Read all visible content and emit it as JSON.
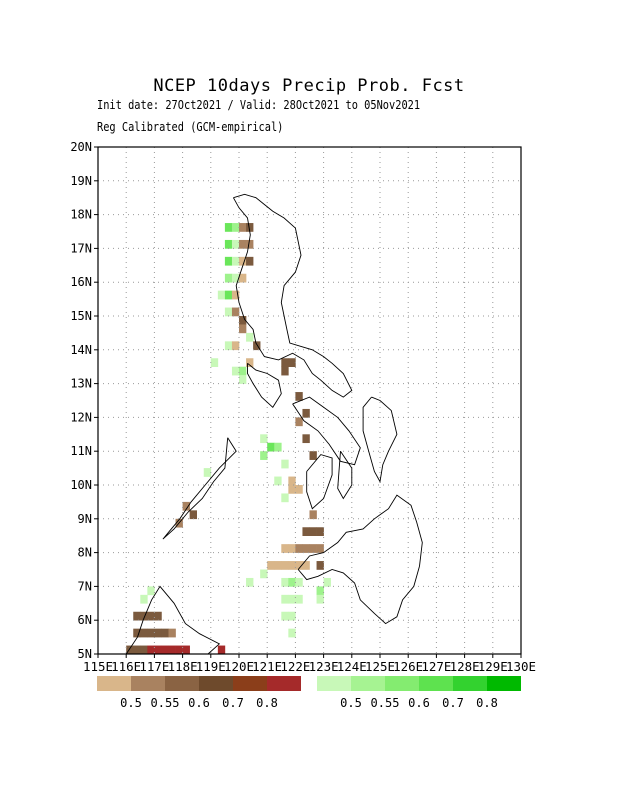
{
  "title": "NCEP 10days Precip Prob. Fcst",
  "subtitle_dates": "Init date: 27Oct2021 / Valid: 28Oct2021 to 05Nov2021",
  "subtitle_method": "Reg Calibrated (GCM-empirical)",
  "y_ticks": [
    "5N",
    "6N",
    "7N",
    "8N",
    "9N",
    "10N",
    "11N",
    "12N",
    "13N",
    "14N",
    "15N",
    "16N",
    "17N",
    "18N",
    "19N",
    "20N"
  ],
  "x_ticks": [
    "115E",
    "116E",
    "117E",
    "118E",
    "119E",
    "120E",
    "121E",
    "122E",
    "123E",
    "124E",
    "125E",
    "126E",
    "127E",
    "128E",
    "129E",
    "130E"
  ],
  "legend_dry": {
    "labels": [
      "0.5",
      "0.55",
      "0.6",
      "0.7",
      "0.8"
    ],
    "colors": [
      "#d9b68a",
      "#a98260",
      "#8a6343",
      "#6e4a2c",
      "#8b3e1a",
      "#a52a2a"
    ]
  },
  "legend_wet": {
    "labels": [
      "0.5",
      "0.55",
      "0.6",
      "0.7",
      "0.8"
    ],
    "colors": [
      "#c8f8b8",
      "#a6f392",
      "#84ec70",
      "#5ee24f",
      "#33d22f",
      "#00b900"
    ]
  },
  "colors": {
    "dry_low": "#d9b68a",
    "dry_mid": "#a98260",
    "dry_high": "#7b5a3e",
    "wet_low": "#c8f8b8",
    "wet_mid": "#9ef28c",
    "wet_high": "#6ae65a",
    "red": "#a52a2a",
    "coast": "#000000",
    "grid": "#999999"
  },
  "cells": [
    {
      "lon": 119.5,
      "lat": 17.5,
      "p": "wet_high"
    },
    {
      "lon": 119.75,
      "lat": 17.5,
      "p": "wet_mid"
    },
    {
      "lon": 120.0,
      "lat": 17.5,
      "p": "dry_mid"
    },
    {
      "lon": 120.25,
      "lat": 17.5,
      "p": "dry_high"
    },
    {
      "lon": 119.5,
      "lat": 17.0,
      "p": "wet_high"
    },
    {
      "lon": 119.75,
      "lat": 17.0,
      "p": "wet_low"
    },
    {
      "lon": 120.0,
      "lat": 17.0,
      "p": "dry_mid"
    },
    {
      "lon": 120.25,
      "lat": 17.0,
      "p": "dry_mid"
    },
    {
      "lon": 119.5,
      "lat": 16.5,
      "p": "wet_high"
    },
    {
      "lon": 119.75,
      "lat": 16.5,
      "p": "wet_low"
    },
    {
      "lon": 120.0,
      "lat": 16.5,
      "p": "dry_low"
    },
    {
      "lon": 120.25,
      "lat": 16.5,
      "p": "dry_high"
    },
    {
      "lon": 119.5,
      "lat": 16.0,
      "p": "wet_mid"
    },
    {
      "lon": 119.75,
      "lat": 16.0,
      "p": "wet_low"
    },
    {
      "lon": 120.0,
      "lat": 16.0,
      "p": "dry_low"
    },
    {
      "lon": 119.25,
      "lat": 15.5,
      "p": "wet_low"
    },
    {
      "lon": 119.5,
      "lat": 15.5,
      "p": "wet_high"
    },
    {
      "lon": 119.75,
      "lat": 15.5,
      "p": "dry_low"
    },
    {
      "lon": 119.5,
      "lat": 15.0,
      "p": "wet_low"
    },
    {
      "lon": 119.75,
      "lat": 15.0,
      "p": "dry_mid"
    },
    {
      "lon": 120.0,
      "lat": 14.75,
      "p": "dry_high"
    },
    {
      "lon": 120.0,
      "lat": 14.5,
      "p": "dry_mid"
    },
    {
      "lon": 120.25,
      "lat": 14.25,
      "p": "wet_low"
    },
    {
      "lon": 119.5,
      "lat": 14.0,
      "p": "wet_low"
    },
    {
      "lon": 119.75,
      "lat": 14.0,
      "p": "dry_low"
    },
    {
      "lon": 120.5,
      "lat": 14.0,
      "p": "dry_high"
    },
    {
      "lon": 119.0,
      "lat": 13.5,
      "p": "wet_low"
    },
    {
      "lon": 119.75,
      "lat": 13.25,
      "p": "wet_low"
    },
    {
      "lon": 120.0,
      "lat": 13.25,
      "p": "wet_mid"
    },
    {
      "lon": 120.0,
      "lat": 13.0,
      "p": "wet_low"
    },
    {
      "lon": 120.25,
      "lat": 13.5,
      "p": "dry_low"
    },
    {
      "lon": 121.5,
      "lat": 13.5,
      "p": "dry_high"
    },
    {
      "lon": 121.75,
      "lat": 13.5,
      "p": "dry_high"
    },
    {
      "lon": 121.5,
      "lat": 13.25,
      "p": "dry_high"
    },
    {
      "lon": 122.0,
      "lat": 12.5,
      "p": "dry_high"
    },
    {
      "lon": 122.25,
      "lat": 12.0,
      "p": "dry_high"
    },
    {
      "lon": 122.0,
      "lat": 11.75,
      "p": "dry_mid"
    },
    {
      "lon": 122.25,
      "lat": 11.25,
      "p": "dry_high"
    },
    {
      "lon": 122.5,
      "lat": 10.75,
      "p": "dry_high"
    },
    {
      "lon": 120.75,
      "lat": 11.25,
      "p": "wet_low"
    },
    {
      "lon": 121.0,
      "lat": 11.0,
      "p": "wet_high"
    },
    {
      "lon": 121.25,
      "lat": 11.0,
      "p": "wet_mid"
    },
    {
      "lon": 120.75,
      "lat": 10.75,
      "p": "wet_mid"
    },
    {
      "lon": 121.5,
      "lat": 10.5,
      "p": "wet_low"
    },
    {
      "lon": 121.25,
      "lat": 10.0,
      "p": "wet_low"
    },
    {
      "lon": 121.5,
      "lat": 9.5,
      "p": "wet_low"
    },
    {
      "lon": 121.75,
      "lat": 9.75,
      "p": "dry_low"
    },
    {
      "lon": 121.75,
      "lat": 10.0,
      "p": "dry_low"
    },
    {
      "lon": 122.0,
      "lat": 9.75,
      "p": "dry_low"
    },
    {
      "lon": 118.75,
      "lat": 10.25,
      "p": "wet_low"
    },
    {
      "lon": 118.0,
      "lat": 9.25,
      "p": "dry_mid"
    },
    {
      "lon": 117.75,
      "lat": 8.75,
      "p": "dry_mid"
    },
    {
      "lon": 118.25,
      "lat": 9.0,
      "p": "dry_high"
    },
    {
      "lon": 122.5,
      "lat": 9.0,
      "p": "dry_mid"
    },
    {
      "lon": 122.25,
      "lat": 8.5,
      "p": "dry_high"
    },
    {
      "lon": 122.5,
      "lat": 8.5,
      "p": "dry_high"
    },
    {
      "lon": 122.75,
      "lat": 8.5,
      "p": "dry_high"
    },
    {
      "lon": 121.5,
      "lat": 8.0,
      "p": "dry_low"
    },
    {
      "lon": 121.75,
      "lat": 8.0,
      "p": "dry_low"
    },
    {
      "lon": 122.0,
      "lat": 8.0,
      "p": "dry_mid"
    },
    {
      "lon": 122.25,
      "lat": 8.0,
      "p": "dry_mid"
    },
    {
      "lon": 122.5,
      "lat": 8.0,
      "p": "dry_mid"
    },
    {
      "lon": 122.75,
      "lat": 8.0,
      "p": "dry_mid"
    },
    {
      "lon": 121.0,
      "lat": 7.5,
      "p": "dry_low"
    },
    {
      "lon": 121.25,
      "lat": 7.5,
      "p": "dry_low"
    },
    {
      "lon": 121.5,
      "lat": 7.5,
      "p": "dry_low"
    },
    {
      "lon": 121.75,
      "lat": 7.5,
      "p": "dry_low"
    },
    {
      "lon": 122.0,
      "lat": 7.5,
      "p": "dry_low"
    },
    {
      "lon": 122.25,
      "lat": 7.5,
      "p": "dry_low"
    },
    {
      "lon": 122.75,
      "lat": 7.5,
      "p": "dry_high"
    },
    {
      "lon": 120.75,
      "lat": 7.25,
      "p": "wet_low"
    },
    {
      "lon": 121.5,
      "lat": 7.0,
      "p": "wet_low"
    },
    {
      "lon": 121.75,
      "lat": 7.0,
      "p": "wet_mid"
    },
    {
      "lon": 122.0,
      "lat": 7.0,
      "p": "wet_low"
    },
    {
      "lon": 121.5,
      "lat": 6.5,
      "p": "wet_low"
    },
    {
      "lon": 121.75,
      "lat": 6.5,
      "p": "wet_low"
    },
    {
      "lon": 122.0,
      "lat": 6.5,
      "p": "wet_low"
    },
    {
      "lon": 121.5,
      "lat": 6.0,
      "p": "wet_low"
    },
    {
      "lon": 121.75,
      "lat": 6.0,
      "p": "wet_low"
    },
    {
      "lon": 121.75,
      "lat": 5.5,
      "p": "wet_low"
    },
    {
      "lon": 122.75,
      "lat": 6.75,
      "p": "wet_mid"
    },
    {
      "lon": 122.75,
      "lat": 6.5,
      "p": "wet_low"
    },
    {
      "lon": 123.0,
      "lat": 7.0,
      "p": "wet_low"
    },
    {
      "lon": 120.25,
      "lat": 7.0,
      "p": "wet_low"
    },
    {
      "lon": 116.5,
      "lat": 6.5,
      "p": "wet_low"
    },
    {
      "lon": 116.75,
      "lat": 6.75,
      "p": "wet_low"
    },
    {
      "lon": 116.25,
      "lat": 6.0,
      "p": "dry_high"
    },
    {
      "lon": 116.5,
      "lat": 6.0,
      "p": "dry_high"
    },
    {
      "lon": 116.75,
      "lat": 6.0,
      "p": "dry_high"
    },
    {
      "lon": 117.0,
      "lat": 6.0,
      "p": "dry_high"
    },
    {
      "lon": 116.25,
      "lat": 5.5,
      "p": "dry_high"
    },
    {
      "lon": 116.5,
      "lat": 5.5,
      "p": "dry_high"
    },
    {
      "lon": 116.75,
      "lat": 5.5,
      "p": "dry_high"
    },
    {
      "lon": 117.0,
      "lat": 5.5,
      "p": "dry_high"
    },
    {
      "lon": 117.25,
      "lat": 5.5,
      "p": "dry_high"
    },
    {
      "lon": 117.5,
      "lat": 5.5,
      "p": "dry_mid"
    },
    {
      "lon": 116.0,
      "lat": 5.0,
      "p": "dry_high"
    },
    {
      "lon": 116.25,
      "lat": 5.0,
      "p": "dry_high"
    },
    {
      "lon": 116.5,
      "lat": 5.0,
      "p": "dry_high"
    },
    {
      "lon": 116.75,
      "lat": 5.0,
      "p": "red"
    },
    {
      "lon": 117.0,
      "lat": 5.0,
      "p": "red"
    },
    {
      "lon": 117.25,
      "lat": 5.0,
      "p": "red"
    },
    {
      "lon": 117.5,
      "lat": 5.0,
      "p": "red"
    },
    {
      "lon": 117.75,
      "lat": 5.0,
      "p": "red"
    },
    {
      "lon": 118.0,
      "lat": 5.0,
      "p": "red"
    },
    {
      "lon": 119.25,
      "lat": 5.0,
      "p": "red"
    }
  ],
  "coast": [
    [
      [
        119.8,
        18.5
      ],
      [
        120.2,
        18.6
      ],
      [
        120.6,
        18.5
      ],
      [
        120.9,
        18.3
      ],
      [
        121.2,
        18.1
      ],
      [
        121.6,
        17.9
      ],
      [
        122.0,
        17.6
      ],
      [
        122.1,
        17.2
      ],
      [
        122.2,
        16.8
      ],
      [
        122.0,
        16.3
      ],
      [
        121.6,
        15.9
      ],
      [
        121.5,
        15.4
      ],
      [
        121.6,
        15.0
      ],
      [
        121.7,
        14.6
      ],
      [
        121.8,
        14.2
      ],
      [
        122.2,
        14.1
      ],
      [
        122.6,
        14.0
      ],
      [
        123.0,
        13.8
      ],
      [
        123.3,
        13.6
      ],
      [
        123.7,
        13.3
      ],
      [
        124.0,
        12.8
      ],
      [
        123.7,
        12.6
      ],
      [
        123.3,
        12.8
      ],
      [
        122.9,
        13.1
      ],
      [
        122.6,
        13.3
      ],
      [
        122.3,
        13.7
      ],
      [
        121.9,
        13.9
      ],
      [
        121.4,
        13.7
      ],
      [
        120.9,
        13.8
      ],
      [
        120.6,
        14.2
      ],
      [
        120.5,
        14.6
      ],
      [
        120.2,
        14.9
      ],
      [
        120.0,
        15.4
      ],
      [
        119.9,
        15.9
      ],
      [
        120.1,
        16.4
      ],
      [
        120.3,
        16.9
      ],
      [
        120.4,
        17.4
      ],
      [
        120.3,
        17.9
      ],
      [
        120.0,
        18.2
      ],
      [
        119.8,
        18.5
      ]
    ],
    [
      [
        120.3,
        13.6
      ],
      [
        120.6,
        13.4
      ],
      [
        121.0,
        13.3
      ],
      [
        121.4,
        13.1
      ],
      [
        121.5,
        12.7
      ],
      [
        121.2,
        12.3
      ],
      [
        120.8,
        12.6
      ],
      [
        120.5,
        13.0
      ],
      [
        120.3,
        13.3
      ],
      [
        120.3,
        13.6
      ]
    ],
    [
      [
        121.9,
        12.4
      ],
      [
        122.5,
        12.6
      ],
      [
        123.0,
        12.3
      ],
      [
        123.5,
        12.0
      ],
      [
        123.9,
        11.6
      ],
      [
        124.3,
        11.1
      ],
      [
        124.1,
        10.6
      ],
      [
        123.6,
        10.7
      ],
      [
        123.2,
        11.2
      ],
      [
        122.8,
        11.6
      ],
      [
        122.3,
        11.9
      ],
      [
        121.9,
        12.4
      ]
    ],
    [
      [
        119.6,
        11.4
      ],
      [
        119.9,
        11.0
      ],
      [
        119.3,
        10.5
      ],
      [
        118.8,
        10.0
      ],
      [
        118.3,
        9.5
      ],
      [
        117.9,
        9.0
      ],
      [
        117.5,
        8.6
      ],
      [
        117.3,
        8.4
      ],
      [
        117.7,
        8.7
      ],
      [
        118.2,
        9.2
      ],
      [
        118.7,
        9.6
      ],
      [
        119.1,
        10.1
      ],
      [
        119.5,
        10.5
      ],
      [
        119.6,
        11.4
      ]
    ],
    [
      [
        122.4,
        10.4
      ],
      [
        122.9,
        10.9
      ],
      [
        123.3,
        10.8
      ],
      [
        123.3,
        10.3
      ],
      [
        123.0,
        9.6
      ],
      [
        122.6,
        9.3
      ],
      [
        122.4,
        9.8
      ],
      [
        122.4,
        10.4
      ]
    ],
    [
      [
        123.6,
        11.0
      ],
      [
        124.0,
        10.5
      ],
      [
        124.0,
        10.0
      ],
      [
        123.7,
        9.6
      ],
      [
        123.5,
        9.9
      ],
      [
        123.6,
        11.0
      ]
    ],
    [
      [
        124.7,
        12.6
      ],
      [
        125.0,
        12.5
      ],
      [
        125.4,
        12.2
      ],
      [
        125.6,
        11.5
      ],
      [
        125.3,
        11.0
      ],
      [
        125.1,
        10.6
      ],
      [
        125.0,
        10.1
      ],
      [
        124.8,
        10.4
      ],
      [
        124.6,
        11.0
      ],
      [
        124.4,
        11.6
      ],
      [
        124.4,
        12.3
      ],
      [
        124.7,
        12.6
      ]
    ],
    [
      [
        122.1,
        7.5
      ],
      [
        122.5,
        7.9
      ],
      [
        123.0,
        8.0
      ],
      [
        123.5,
        8.3
      ],
      [
        123.8,
        8.6
      ],
      [
        124.4,
        8.7
      ],
      [
        124.8,
        9.0
      ],
      [
        125.3,
        9.3
      ],
      [
        125.6,
        9.7
      ],
      [
        126.1,
        9.4
      ],
      [
        126.3,
        8.9
      ],
      [
        126.5,
        8.3
      ],
      [
        126.4,
        7.6
      ],
      [
        126.2,
        7.0
      ],
      [
        125.8,
        6.6
      ],
      [
        125.6,
        6.1
      ],
      [
        125.2,
        5.9
      ],
      [
        124.8,
        6.2
      ],
      [
        124.3,
        6.6
      ],
      [
        124.1,
        7.1
      ],
      [
        123.7,
        7.4
      ],
      [
        123.3,
        7.5
      ],
      [
        122.8,
        7.3
      ],
      [
        122.4,
        7.2
      ],
      [
        122.1,
        7.5
      ]
    ],
    [
      [
        116.0,
        5.0
      ],
      [
        116.4,
        5.5
      ],
      [
        116.6,
        6.0
      ],
      [
        116.9,
        6.6
      ],
      [
        117.2,
        7.0
      ],
      [
        117.7,
        6.5
      ],
      [
        118.1,
        5.9
      ],
      [
        118.6,
        5.6
      ],
      [
        119.3,
        5.3
      ],
      [
        118.9,
        5.0
      ],
      [
        116.0,
        5.0
      ]
    ]
  ]
}
